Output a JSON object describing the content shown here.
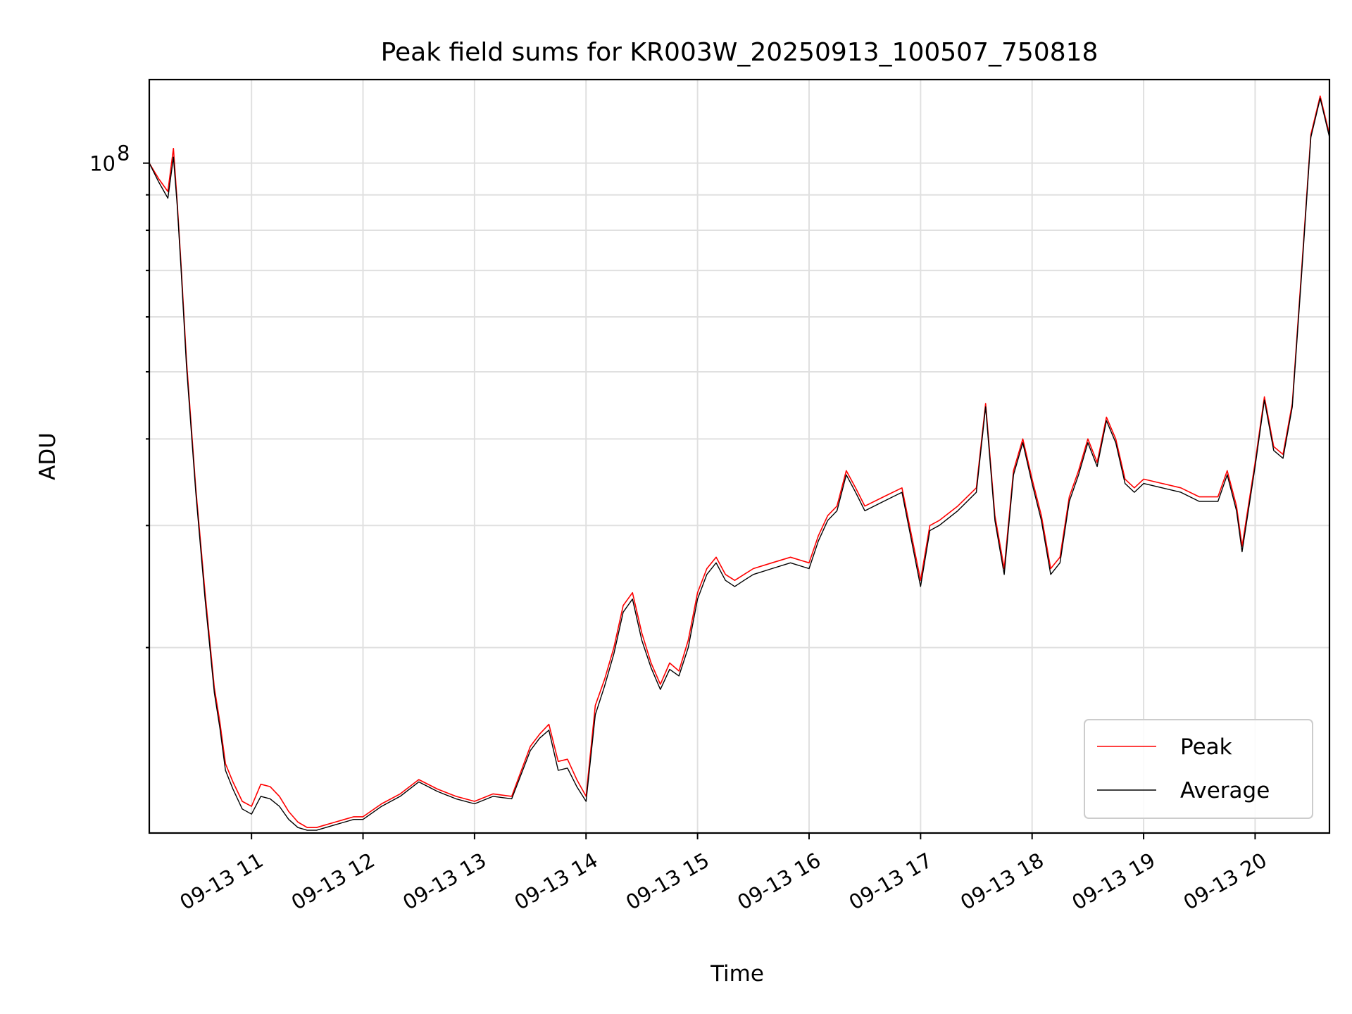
{
  "chart_data": {
    "type": "line",
    "title": "Peak field sums for KR003W_20250913_100507_750818",
    "xlabel": "Time",
    "ylabel": "ADU",
    "x_range": [
      "2025-09-13 10:05",
      "2025-09-13 20:40"
    ],
    "y_scale": "log",
    "y_range": [
      10800000,
      132000000
    ],
    "y_tick_labels": [
      {
        "value": 100000000,
        "mantissa": "10",
        "exponent": "8"
      }
    ],
    "y_minor_ticks": [
      20000000,
      30000000,
      40000000,
      50000000,
      60000000,
      70000000,
      80000000,
      90000000
    ],
    "x_tick_labels": [
      "09-13 11",
      "09-13 12",
      "09-13 13",
      "09-13 14",
      "09-13 15",
      "09-13 16",
      "09-13 17",
      "09-13 18",
      "09-13 19",
      "09-13 20"
    ],
    "x_tick_times": [
      "2025-09-13 11:00",
      "2025-09-13 12:00",
      "2025-09-13 13:00",
      "2025-09-13 14:00",
      "2025-09-13 15:00",
      "2025-09-13 16:00",
      "2025-09-13 17:00",
      "2025-09-13 18:00",
      "2025-09-13 19:00",
      "2025-09-13 20:00"
    ],
    "grid": true,
    "legend_position": "lower-right",
    "series": [
      {
        "name": "Peak",
        "color": "#ff0000",
        "x": [
          "10:05",
          "10:10",
          "10:15",
          "10:18",
          "10:20",
          "10:22",
          "10:25",
          "10:30",
          "10:35",
          "10:40",
          "10:43",
          "10:46",
          "10:50",
          "10:55",
          "11:00",
          "11:05",
          "11:10",
          "11:15",
          "11:20",
          "11:25",
          "11:30",
          "11:35",
          "11:40",
          "11:45",
          "11:50",
          "11:55",
          "12:00",
          "12:10",
          "12:20",
          "12:30",
          "12:40",
          "12:50",
          "13:00",
          "13:10",
          "13:20",
          "13:30",
          "13:35",
          "13:40",
          "13:45",
          "13:50",
          "13:55",
          "14:00",
          "14:05",
          "14:10",
          "14:15",
          "14:20",
          "14:25",
          "14:30",
          "14:35",
          "14:40",
          "14:45",
          "14:50",
          "14:55",
          "15:00",
          "15:05",
          "15:10",
          "15:15",
          "15:20",
          "15:25",
          "15:30",
          "15:40",
          "15:50",
          "16:00",
          "16:05",
          "16:10",
          "16:15",
          "16:20",
          "16:25",
          "16:30",
          "16:40",
          "16:50",
          "17:00",
          "17:05",
          "17:10",
          "17:20",
          "17:30",
          "17:35",
          "17:40",
          "17:45",
          "17:50",
          "17:55",
          "18:00",
          "18:05",
          "18:10",
          "18:15",
          "18:20",
          "18:25",
          "18:30",
          "18:35",
          "18:40",
          "18:45",
          "18:50",
          "18:55",
          "19:00",
          "19:10",
          "19:20",
          "19:30",
          "19:40",
          "19:45",
          "19:50",
          "19:53",
          "20:00",
          "20:05",
          "20:10",
          "20:15",
          "20:20",
          "20:25",
          "20:30",
          "20:35",
          "20:40"
        ],
        "y": [
          100000000,
          95000000,
          91000000,
          105000000,
          88000000,
          72000000,
          52000000,
          34000000,
          24000000,
          17500000,
          15600000,
          13600000,
          12800000,
          12000000,
          11800000,
          12700000,
          12600000,
          12200000,
          11600000,
          11200000,
          11000000,
          11000000,
          11100000,
          11200000,
          11300000,
          11400000,
          11400000,
          11900000,
          12300000,
          12900000,
          12500000,
          12200000,
          12000000,
          12300000,
          12200000,
          14400000,
          15000000,
          15500000,
          13700000,
          13800000,
          12900000,
          12200000,
          16500000,
          18000000,
          20000000,
          23000000,
          24000000,
          21000000,
          19000000,
          17700000,
          19000000,
          18500000,
          20500000,
          24000000,
          26000000,
          27000000,
          25500000,
          25000000,
          25500000,
          26000000,
          26500000,
          27000000,
          26500000,
          29000000,
          31000000,
          32000000,
          36000000,
          34000000,
          32000000,
          33000000,
          34000000,
          25000000,
          30000000,
          30500000,
          32000000,
          34000000,
          45000000,
          31000000,
          26000000,
          36000000,
          40000000,
          35000000,
          31000000,
          26000000,
          27000000,
          33000000,
          36000000,
          40000000,
          37000000,
          43000000,
          40000000,
          35000000,
          34000000,
          35000000,
          34500000,
          34000000,
          33000000,
          33000000,
          36000000,
          32000000,
          28000000,
          37000000,
          46000000,
          39000000,
          38000000,
          45000000,
          70000000,
          110000000,
          125000000,
          110000000
        ]
      },
      {
        "name": "Average",
        "color": "#000000",
        "x": [
          "10:05",
          "10:10",
          "10:15",
          "10:18",
          "10:20",
          "10:22",
          "10:25",
          "10:30",
          "10:35",
          "10:40",
          "10:43",
          "10:46",
          "10:50",
          "10:55",
          "11:00",
          "11:05",
          "11:10",
          "11:15",
          "11:20",
          "11:25",
          "11:30",
          "11:35",
          "11:40",
          "11:45",
          "11:50",
          "11:55",
          "12:00",
          "12:10",
          "12:20",
          "12:30",
          "12:40",
          "12:50",
          "13:00",
          "13:10",
          "13:20",
          "13:30",
          "13:35",
          "13:40",
          "13:45",
          "13:50",
          "13:55",
          "14:00",
          "14:05",
          "14:10",
          "14:15",
          "14:20",
          "14:25",
          "14:30",
          "14:35",
          "14:40",
          "14:45",
          "14:50",
          "14:55",
          "15:00",
          "15:05",
          "15:10",
          "15:15",
          "15:20",
          "15:25",
          "15:30",
          "15:40",
          "15:50",
          "16:00",
          "16:05",
          "16:10",
          "16:15",
          "16:20",
          "16:25",
          "16:30",
          "16:40",
          "16:50",
          "17:00",
          "17:05",
          "17:10",
          "17:20",
          "17:30",
          "17:35",
          "17:40",
          "17:45",
          "17:50",
          "17:55",
          "18:00",
          "18:05",
          "18:10",
          "18:15",
          "18:20",
          "18:25",
          "18:30",
          "18:35",
          "18:40",
          "18:45",
          "18:50",
          "18:55",
          "19:00",
          "19:10",
          "19:20",
          "19:30",
          "19:40",
          "19:45",
          "19:50",
          "19:53",
          "20:00",
          "20:05",
          "20:10",
          "20:15",
          "20:20",
          "20:25",
          "20:30",
          "20:35",
          "20:40"
        ],
        "y": [
          100000000,
          94000000,
          89000000,
          102000000,
          87000000,
          71000000,
          51000000,
          33500000,
          23500000,
          17200000,
          15300000,
          13300000,
          12500000,
          11700000,
          11500000,
          12200000,
          12100000,
          11800000,
          11300000,
          11000000,
          10900000,
          10900000,
          11000000,
          11100000,
          11200000,
          11300000,
          11300000,
          11800000,
          12200000,
          12800000,
          12400000,
          12100000,
          11900000,
          12200000,
          12100000,
          14200000,
          14800000,
          15200000,
          13300000,
          13400000,
          12600000,
          12000000,
          16000000,
          17600000,
          19600000,
          22500000,
          23500000,
          20500000,
          18700000,
          17400000,
          18600000,
          18200000,
          20000000,
          23500000,
          25500000,
          26500000,
          25000000,
          24500000,
          25000000,
          25500000,
          26000000,
          26500000,
          26000000,
          28500000,
          30500000,
          31500000,
          35500000,
          33500000,
          31500000,
          32500000,
          33500000,
          24500000,
          29500000,
          30000000,
          31500000,
          33500000,
          44500000,
          30500000,
          25500000,
          35500000,
          39500000,
          34500000,
          30500000,
          25500000,
          26500000,
          32500000,
          35500000,
          39500000,
          36500000,
          42500000,
          39500000,
          34500000,
          33500000,
          34500000,
          34000000,
          33500000,
          32500000,
          32500000,
          35500000,
          31500000,
          27500000,
          36500000,
          45500000,
          38500000,
          37500000,
          44500000,
          69000000,
          109000000,
          124000000,
          109000000
        ]
      }
    ]
  }
}
